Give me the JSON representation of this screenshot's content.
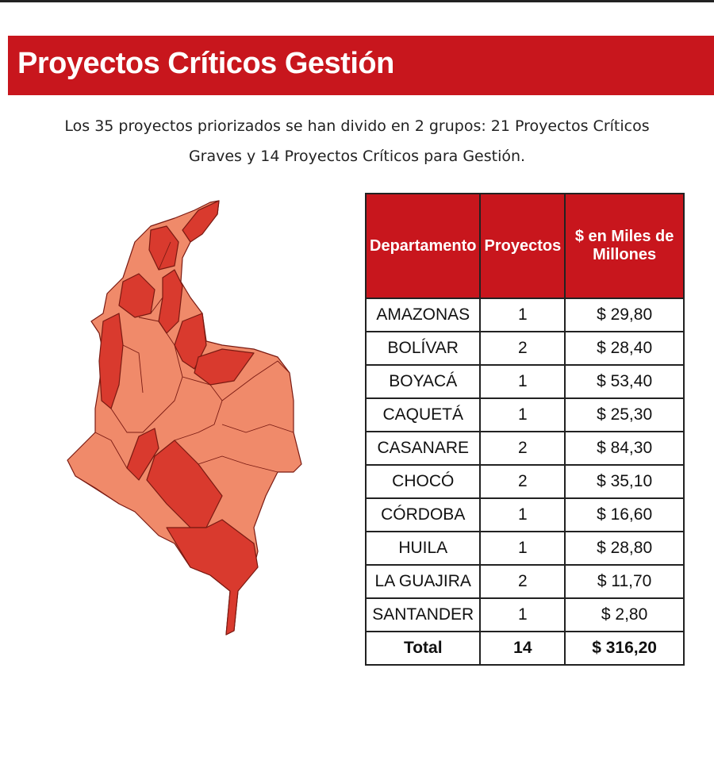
{
  "header": {
    "title": "Proyectos Críticos Gestión"
  },
  "intro": [
    "Los 35 proyectos priorizados se han divido en 2 grupos: 21 Proyectos Críticos",
    "Graves y 14 Proyectos Críticos para Gestión."
  ],
  "table": {
    "columns": [
      "Departamento",
      "Proyectos",
      "$ en Miles de Millones"
    ],
    "rows": [
      [
        "AMAZONAS",
        "1",
        "$ 29,80"
      ],
      [
        "BOLÍVAR",
        "2",
        "$ 28,40"
      ],
      [
        "BOYACÁ",
        "1",
        "$ 53,40"
      ],
      [
        "CAQUETÁ",
        "1",
        "$ 25,30"
      ],
      [
        "CASANARE",
        "2",
        "$ 84,30"
      ],
      [
        "CHOCÓ",
        "2",
        "$ 35,10"
      ],
      [
        "CÓRDOBA",
        "1",
        "$ 16,60"
      ],
      [
        "HUILA",
        "1",
        "$ 28,80"
      ],
      [
        "LA GUAJIRA",
        "2",
        "$ 11,70"
      ],
      [
        "SANTANDER",
        "1",
        "$ 2,80"
      ]
    ],
    "total": [
      "Total",
      "14",
      "$ 316,20"
    ]
  }
}
